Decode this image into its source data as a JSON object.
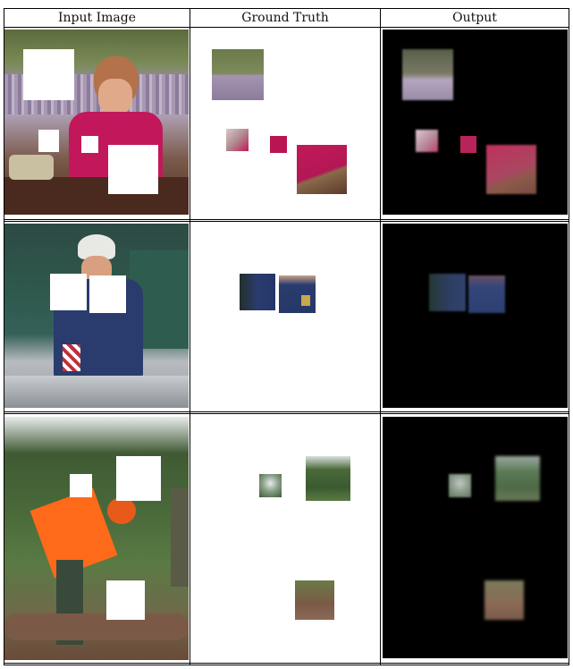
{
  "table": {
    "headers": [
      "Input Image",
      "Ground Truth",
      "Output"
    ]
  },
  "rows": [
    {
      "name": "row-1-woman-at-table",
      "scene": "woman-in-pink-shirt-at-table",
      "accent_colors": [
        "#c2185b",
        "#6b4a3a",
        "#8a8aa6",
        "#5a3a2a"
      ]
    },
    {
      "name": "row-2-cook-in-kitchen",
      "scene": "cook-with-chef-hat-chalkboard",
      "accent_colors": [
        "#2d5a4a",
        "#2a3c6e",
        "#d0d0d0",
        "#9a9a9a"
      ]
    },
    {
      "name": "row-3-worker-in-forest",
      "scene": "worker-in-orange-vest-forest",
      "accent_colors": [
        "#ff6a1a",
        "#3d5a2a",
        "#8a7a66",
        "#6a4a3a"
      ]
    }
  ]
}
